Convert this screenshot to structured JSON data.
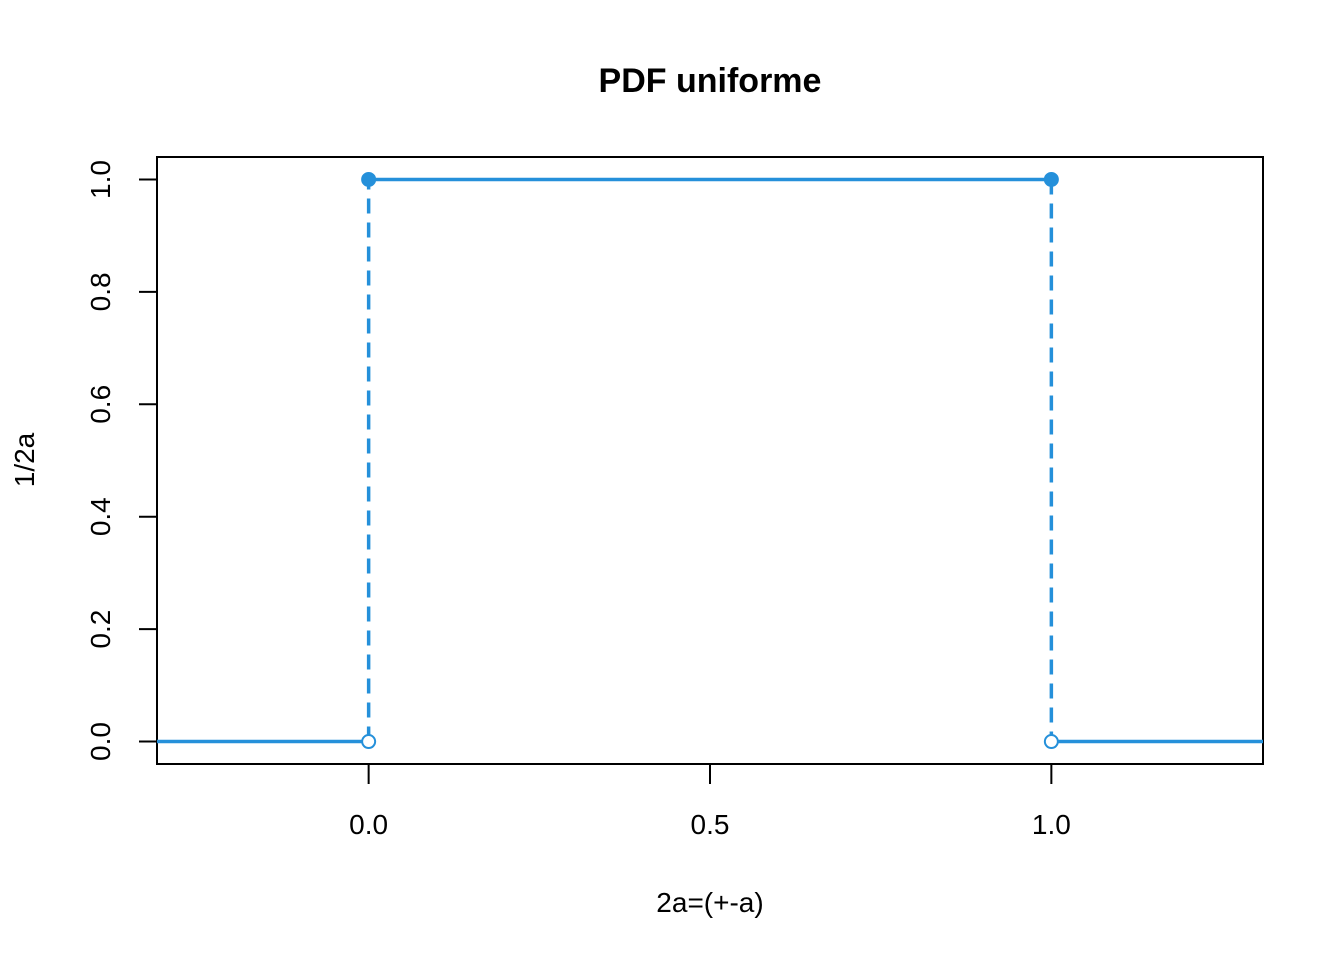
{
  "chart_data": {
    "type": "line",
    "title": "PDF uniforme",
    "xlabel": "2a=(+-a)",
    "ylabel": "1/2a",
    "xlim": [
      -0.31,
      1.31
    ],
    "ylim": [
      -0.04,
      1.04
    ],
    "x_ticks": [
      {
        "value": 0.0,
        "label": "0.0"
      },
      {
        "value": 0.5,
        "label": "0.5"
      },
      {
        "value": 1.0,
        "label": "1.0"
      }
    ],
    "y_ticks": [
      {
        "value": 0.0,
        "label": "0.0"
      },
      {
        "value": 0.2,
        "label": "0.2"
      },
      {
        "value": 0.4,
        "label": "0.4"
      },
      {
        "value": 0.6,
        "label": "0.6"
      },
      {
        "value": 0.8,
        "label": "0.8"
      },
      {
        "value": 1.0,
        "label": "1.0"
      }
    ],
    "color": "#2590DA",
    "segments": [
      {
        "x": [
          -0.31,
          0.0
        ],
        "y": [
          0,
          0
        ]
      },
      {
        "x": [
          0.0,
          1.0
        ],
        "y": [
          1,
          1
        ]
      },
      {
        "x": [
          1.0,
          1.31
        ],
        "y": [
          0,
          0
        ]
      }
    ],
    "jumps": [
      {
        "x": 0.0,
        "y": [
          0,
          1
        ]
      },
      {
        "x": 1.0,
        "y": [
          1,
          0
        ]
      }
    ],
    "closed_points": [
      {
        "x": 0.0,
        "y": 1
      },
      {
        "x": 1.0,
        "y": 1
      }
    ],
    "open_points": [
      {
        "x": 0.0,
        "y": 0
      },
      {
        "x": 1.0,
        "y": 0
      }
    ],
    "grid": false,
    "legend": "none"
  }
}
